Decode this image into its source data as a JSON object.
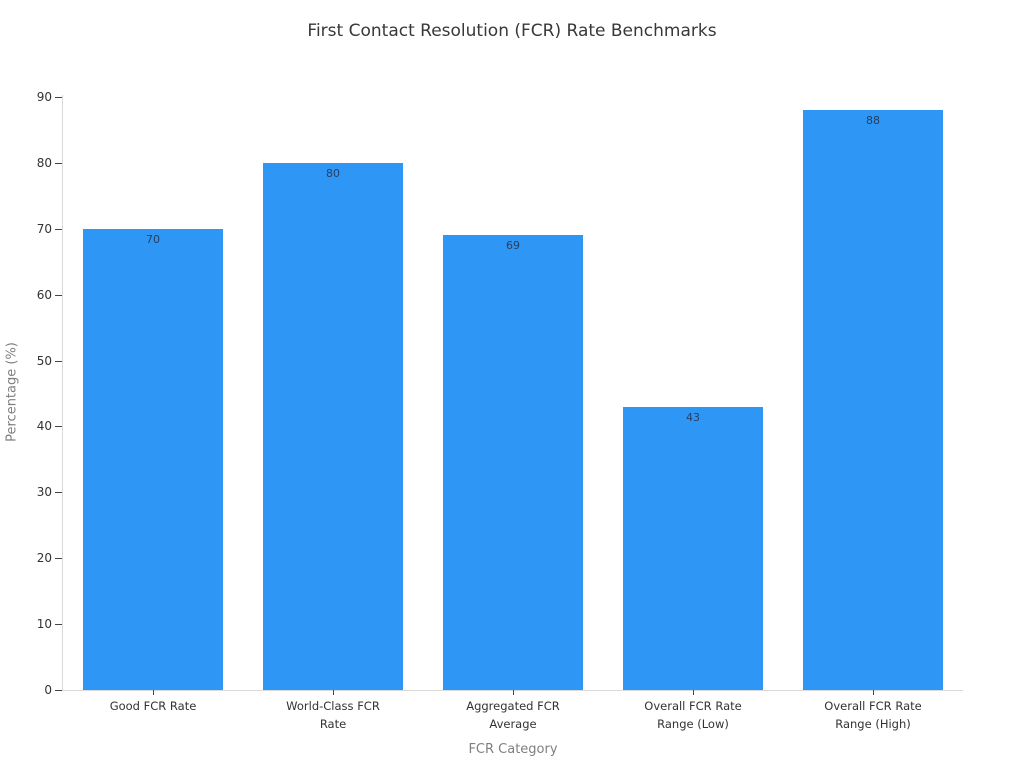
{
  "chart_data": {
    "type": "bar",
    "title": "First Contact Resolution (FCR) Rate Benchmarks",
    "xlabel": "FCR Category",
    "ylabel": "Percentage (%)",
    "categories": [
      "Good FCR Rate",
      "World-Class FCR Rate",
      "Aggregated FCR Average",
      "Overall FCR Rate Range (Low)",
      "Overall FCR Rate Range (High)"
    ],
    "categories_wrapped": [
      [
        "Good FCR Rate"
      ],
      [
        "World-Class FCR",
        "Rate"
      ],
      [
        "Aggregated FCR",
        "Average"
      ],
      [
        "Overall FCR Rate",
        "Range (Low)"
      ],
      [
        "Overall FCR Rate",
        "Range (High)"
      ]
    ],
    "values": [
      70,
      80,
      69,
      43,
      88
    ],
    "ylim": [
      0,
      90
    ],
    "yticks": [
      0,
      10,
      20,
      30,
      40,
      50,
      60,
      70,
      80,
      90
    ],
    "bar_color": "#2E96F5",
    "bar_label_color": "#2a3f5f",
    "grid": false,
    "legend": false
  }
}
